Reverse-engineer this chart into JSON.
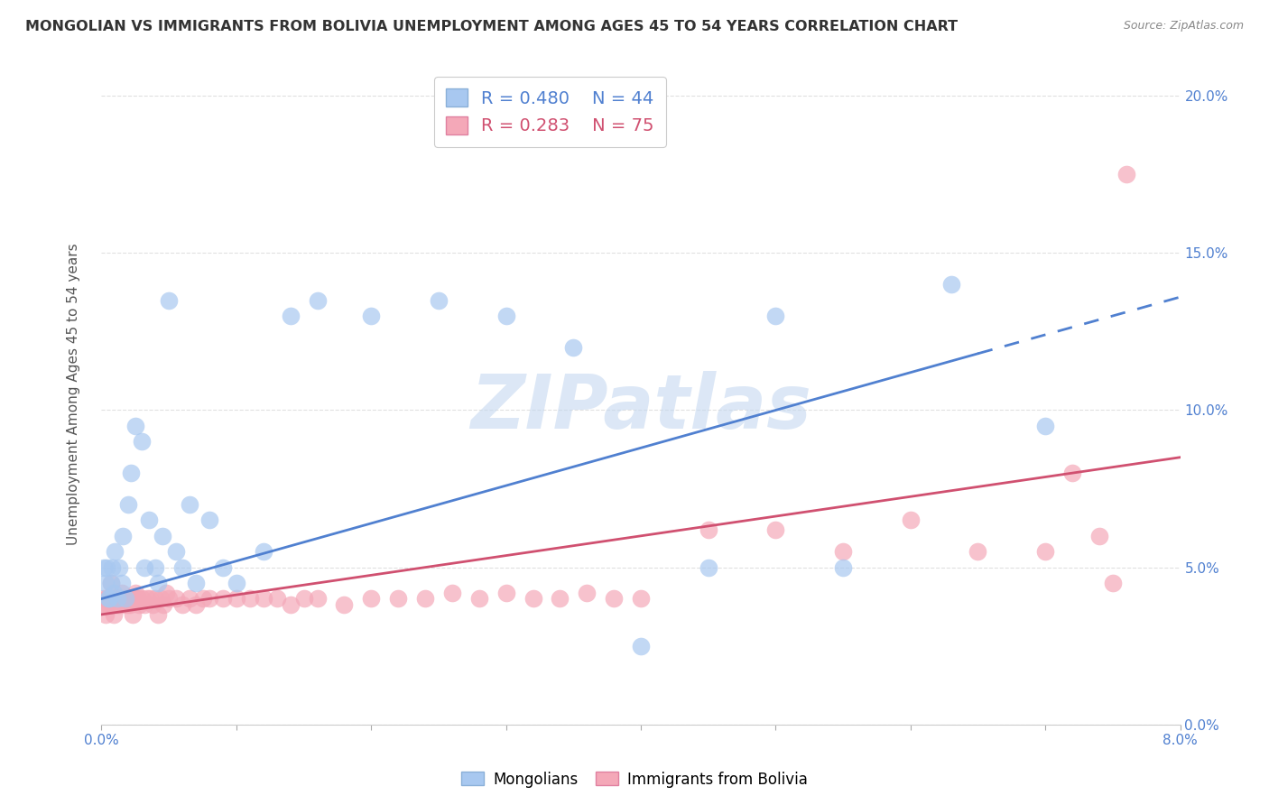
{
  "title": "MONGOLIAN VS IMMIGRANTS FROM BOLIVIA UNEMPLOYMENT AMONG AGES 45 TO 54 YEARS CORRELATION CHART",
  "source": "Source: ZipAtlas.com",
  "ylabel": "Unemployment Among Ages 45 to 54 years",
  "x_min": 0.0,
  "x_max": 0.08,
  "y_min": 0.0,
  "y_max": 0.21,
  "y_ticks": [
    0.0,
    0.05,
    0.1,
    0.15,
    0.2
  ],
  "legend1_r": "0.480",
  "legend1_n": "44",
  "legend2_r": "0.283",
  "legend2_n": "75",
  "color_mongolian": "#a8c8f0",
  "color_bolivia": "#f4a8b8",
  "trend_color_mongolian": "#5080d0",
  "trend_color_bolivia": "#d05070",
  "mongolian_x": [
    0.0002,
    0.0003,
    0.0004,
    0.0005,
    0.0006,
    0.0007,
    0.0008,
    0.0009,
    0.001,
    0.0012,
    0.0013,
    0.0015,
    0.0016,
    0.0018,
    0.002,
    0.0022,
    0.0025,
    0.003,
    0.0032,
    0.0035,
    0.004,
    0.0042,
    0.0045,
    0.005,
    0.0055,
    0.006,
    0.0065,
    0.007,
    0.008,
    0.009,
    0.01,
    0.012,
    0.014,
    0.016,
    0.02,
    0.025,
    0.03,
    0.035,
    0.04,
    0.045,
    0.05,
    0.055,
    0.063,
    0.07
  ],
  "mongolian_y": [
    0.05,
    0.045,
    0.05,
    0.04,
    0.04,
    0.045,
    0.05,
    0.042,
    0.055,
    0.04,
    0.05,
    0.045,
    0.06,
    0.04,
    0.07,
    0.08,
    0.095,
    0.09,
    0.05,
    0.065,
    0.05,
    0.045,
    0.06,
    0.135,
    0.055,
    0.05,
    0.07,
    0.045,
    0.065,
    0.05,
    0.045,
    0.055,
    0.13,
    0.135,
    0.13,
    0.135,
    0.13,
    0.12,
    0.025,
    0.05,
    0.13,
    0.05,
    0.14,
    0.095
  ],
  "bolivia_x": [
    0.0001,
    0.0002,
    0.0003,
    0.0004,
    0.0005,
    0.0006,
    0.0007,
    0.0008,
    0.0009,
    0.001,
    0.0011,
    0.0012,
    0.0013,
    0.0014,
    0.0015,
    0.0016,
    0.0017,
    0.0018,
    0.0019,
    0.002,
    0.0021,
    0.0022,
    0.0023,
    0.0024,
    0.0025,
    0.0026,
    0.0027,
    0.0028,
    0.003,
    0.0032,
    0.0034,
    0.0036,
    0.0038,
    0.004,
    0.0042,
    0.0044,
    0.0046,
    0.0048,
    0.005,
    0.0055,
    0.006,
    0.0065,
    0.007,
    0.0075,
    0.008,
    0.009,
    0.01,
    0.011,
    0.012,
    0.013,
    0.014,
    0.015,
    0.016,
    0.018,
    0.02,
    0.022,
    0.024,
    0.026,
    0.028,
    0.03,
    0.032,
    0.034,
    0.036,
    0.038,
    0.04,
    0.045,
    0.05,
    0.055,
    0.06,
    0.065,
    0.07,
    0.072,
    0.074,
    0.075,
    0.076
  ],
  "bolivia_y": [
    0.038,
    0.04,
    0.035,
    0.04,
    0.038,
    0.04,
    0.045,
    0.038,
    0.035,
    0.04,
    0.038,
    0.04,
    0.038,
    0.04,
    0.042,
    0.038,
    0.04,
    0.04,
    0.038,
    0.04,
    0.038,
    0.04,
    0.035,
    0.04,
    0.042,
    0.04,
    0.04,
    0.038,
    0.04,
    0.038,
    0.04,
    0.04,
    0.038,
    0.04,
    0.035,
    0.04,
    0.038,
    0.042,
    0.04,
    0.04,
    0.038,
    0.04,
    0.038,
    0.04,
    0.04,
    0.04,
    0.04,
    0.04,
    0.04,
    0.04,
    0.038,
    0.04,
    0.04,
    0.038,
    0.04,
    0.04,
    0.04,
    0.042,
    0.04,
    0.042,
    0.04,
    0.04,
    0.042,
    0.04,
    0.04,
    0.062,
    0.062,
    0.055,
    0.065,
    0.055,
    0.055,
    0.08,
    0.06,
    0.045,
    0.175
  ],
  "trend_mongolian_x0": 0.0,
  "trend_mongolian_y0": 0.04,
  "trend_mongolian_x1": 0.075,
  "trend_mongolian_y1": 0.13,
  "trend_bolivia_x0": 0.0,
  "trend_bolivia_y0": 0.035,
  "trend_bolivia_x1": 0.08,
  "trend_bolivia_y1": 0.085,
  "watermark": "ZIPatlas",
  "background_color": "#ffffff",
  "grid_color": "#dddddd"
}
